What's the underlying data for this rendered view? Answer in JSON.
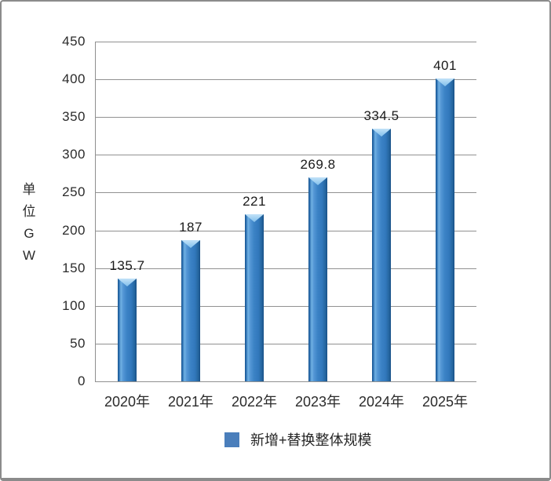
{
  "frame": {
    "background": "#ffffff",
    "border_color": "#8b8b8b"
  },
  "axis_title": {
    "text": "单位GW",
    "chars": [
      "单",
      "位",
      "G",
      "W"
    ]
  },
  "legend": {
    "label": "新增+替换整体规模",
    "swatch_color": "#4a7ebb"
  },
  "chart_data": {
    "type": "bar",
    "title": "",
    "categories": [
      "2020年",
      "2021年",
      "2022年",
      "2023年",
      "2024年",
      "2025年"
    ],
    "series": [
      {
        "name": "新增+替换整体规模",
        "values": [
          135.7,
          187,
          221,
          269.8,
          334.5,
          401
        ],
        "data_labels": [
          "135.7",
          "187",
          "221",
          "269.8",
          "334.5",
          "401"
        ]
      }
    ],
    "xlabel": "",
    "ylabel": "单位GW",
    "ylim": [
      0,
      450
    ],
    "yticks": [
      0,
      50,
      100,
      150,
      200,
      250,
      300,
      350,
      400,
      450
    ],
    "grid": true,
    "gridline_color": "#919191",
    "axis_line_color": "#8f8f8f",
    "bar_color": "#3a7fc4",
    "bar_edge_color": "#1d5c9c",
    "bar_highlight_color": "#8ec6ee",
    "label_color": "#1a1a1a",
    "legend_position": "bottom"
  }
}
